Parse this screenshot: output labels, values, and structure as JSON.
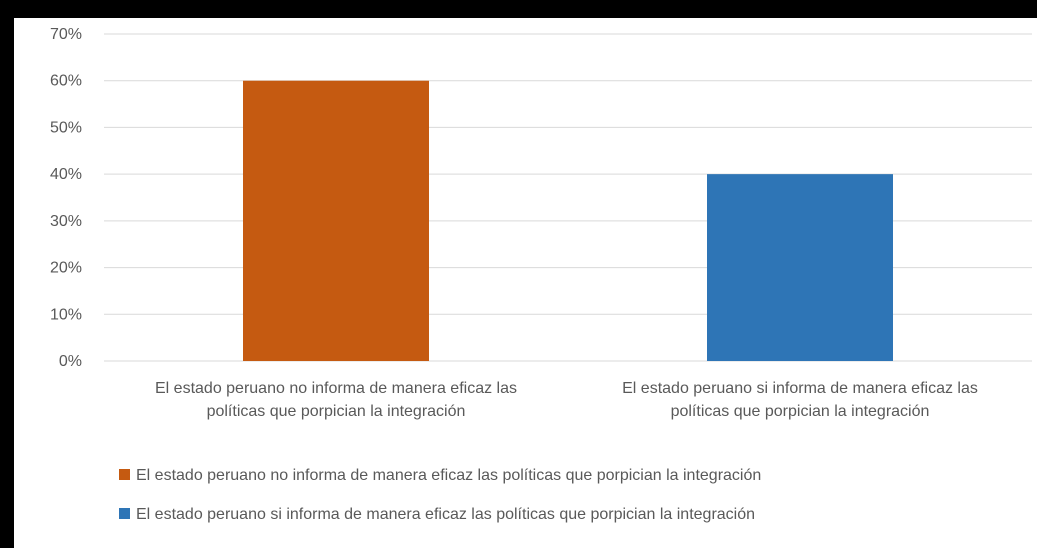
{
  "chart_data": {
    "type": "bar",
    "categories": [
      "El estado peruano no informa de manera eficaz las políticas que porpician la integración",
      "El estado peruano si  informa de manera eficaz las políticas que porpician la integración"
    ],
    "category_label_lines": [
      [
        "El estado peruano no informa de manera eficaz las",
        "políticas que porpician la integración"
      ],
      [
        "El estado peruano si  informa de manera eficaz las",
        "políticas que porpician la integración"
      ]
    ],
    "values": [
      0.6,
      0.4
    ],
    "colors": [
      "#c55a11",
      "#2e75b6"
    ],
    "ylim": [
      0,
      0.7
    ],
    "yticks": [
      0,
      0.1,
      0.2,
      0.3,
      0.4,
      0.5,
      0.6,
      0.7
    ],
    "ytick_labels": [
      "0%",
      "10%",
      "20%",
      "30%",
      "40%",
      "50%",
      "60%",
      "70%"
    ],
    "grid": true,
    "legend_position": "bottom",
    "legend": [
      "El estado peruano no informa de manera eficaz las políticas que porpician la integración",
      "El estado peruano si  informa de manera eficaz las políticas que porpician la integración"
    ],
    "title": "",
    "xlabel": "",
    "ylabel": ""
  }
}
